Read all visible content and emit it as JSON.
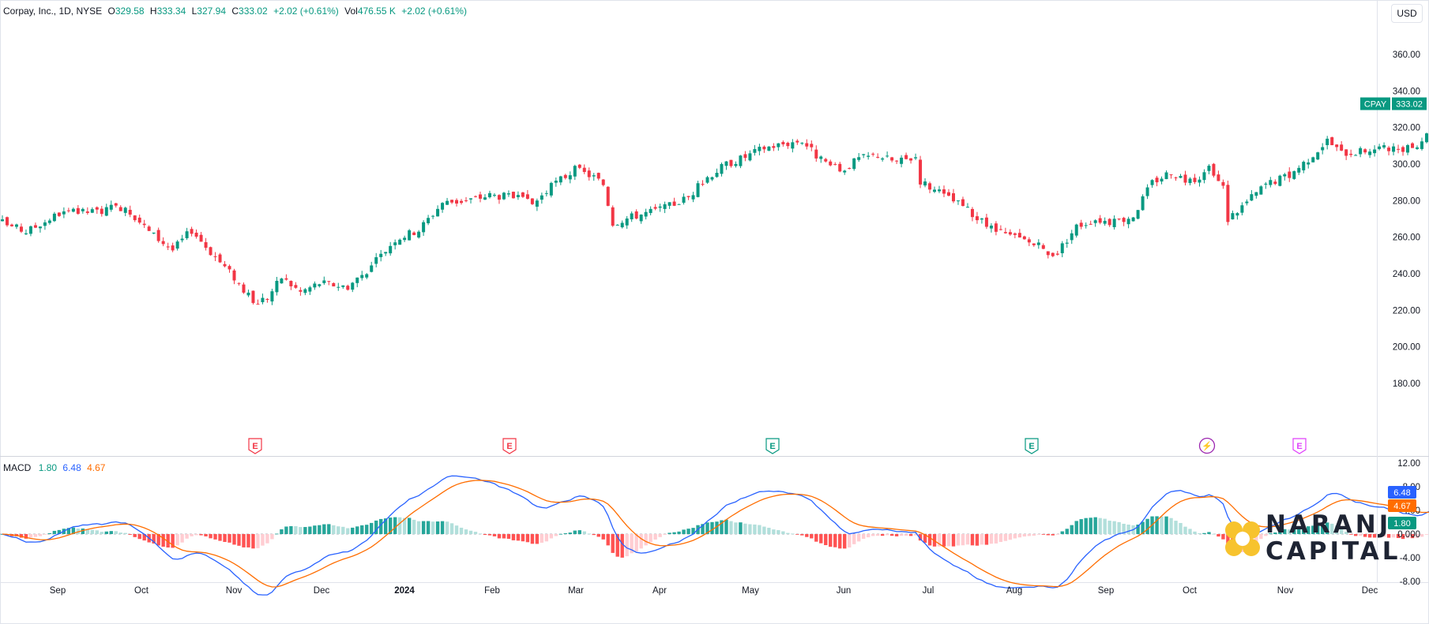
{
  "header": {
    "symbol_title": "Corpay, Inc., 1D, NYSE",
    "open_label": "O",
    "open_value": "329.58",
    "high_label": "H",
    "high_value": "333.34",
    "low_label": "L",
    "low_value": "327.94",
    "close_label": "C",
    "close_value": "333.02",
    "change": "+2.02 (+0.61%)",
    "vol_label": "Vol",
    "vol_value": "476.55 K",
    "vol_change": "+2.02 (+0.61%)"
  },
  "currency_button": "USD",
  "price_tag": {
    "ticker": "CPAY",
    "value": "333.02"
  },
  "macd_legend": {
    "label": "MACD",
    "hist": "1.80",
    "macd": "6.48",
    "signal": "4.67"
  },
  "macd_tags": {
    "macd": "6.48",
    "signal": "4.67",
    "hist": "1.80"
  },
  "brand": {
    "line1": "NARANJ",
    "line2": "CAPITAL"
  },
  "colors": {
    "up": "#089981",
    "down": "#f23645",
    "macd_line": "#2962ff",
    "signal_line": "#ff6d00",
    "hist_up": "#26a69a",
    "hist_up_light": "#b2dfdb",
    "hist_down": "#ff5252",
    "hist_down_light": "#ffcdd2",
    "brand_gold": "#f7c32e",
    "brand_text": "#1e2433"
  },
  "chart_data": [
    {
      "type": "candlestick",
      "title": "Corpay, Inc., 1D, NYSE",
      "ylim": [
        180,
        370
      ],
      "y_ticks": [
        "360.00",
        "340.00",
        "320.00",
        "300.00",
        "280.00",
        "260.00",
        "240.00",
        "220.00",
        "200.00",
        "180.00"
      ],
      "x_labels": [
        "Sep",
        "Oct",
        "Nov",
        "Dec",
        "2024",
        "Feb",
        "Mar",
        "Apr",
        "May",
        "Jun",
        "Jul",
        "Aug",
        "Sep",
        "Oct",
        "Nov",
        "Dec"
      ],
      "earnings_markers": [
        {
          "label": "E",
          "date": "Nov 2023",
          "status": "miss"
        },
        {
          "label": "E",
          "date": "Feb 2024",
          "status": "miss"
        },
        {
          "label": "E",
          "date": "May 2024",
          "status": "beat"
        },
        {
          "label": "E",
          "date": "Aug 2024",
          "status": "beat"
        },
        {
          "label": "⚡",
          "date": "Oct 2024",
          "status": "upcoming"
        },
        {
          "label": "E",
          "date": "Nov 2024",
          "status": "upcoming"
        }
      ],
      "close_path": [
        {
          "t": 0.0,
          "c": 268
        },
        {
          "t": 5.0,
          "c": 263
        },
        {
          "t": 12.0,
          "c": 273
        },
        {
          "t": 20.0,
          "c": 274
        },
        {
          "t": 26.0,
          "c": 277
        },
        {
          "t": 31.0,
          "c": 263
        },
        {
          "t": 36.0,
          "c": 253
        },
        {
          "t": 40.0,
          "c": 264
        },
        {
          "t": 44.0,
          "c": 252
        },
        {
          "t": 49.0,
          "c": 238
        },
        {
          "t": 53.0,
          "c": 224
        },
        {
          "t": 56.0,
          "c": 227
        },
        {
          "t": 59.0,
          "c": 238
        },
        {
          "t": 63.0,
          "c": 230
        },
        {
          "t": 67.0,
          "c": 235
        },
        {
          "t": 73.0,
          "c": 233
        },
        {
          "t": 78.0,
          "c": 244
        },
        {
          "t": 83.0,
          "c": 259
        },
        {
          "t": 88.0,
          "c": 264
        },
        {
          "t": 93.0,
          "c": 279
        },
        {
          "t": 98.0,
          "c": 280
        },
        {
          "t": 103.0,
          "c": 283
        },
        {
          "t": 108.0,
          "c": 282
        },
        {
          "t": 112.0,
          "c": 278
        },
        {
          "t": 117.0,
          "c": 290
        },
        {
          "t": 121.0,
          "c": 297
        },
        {
          "t": 125.0,
          "c": 293
        },
        {
          "t": 127.0,
          "c": 289
        },
        {
          "t": 129.0,
          "c": 268
        },
        {
          "t": 134.0,
          "c": 272
        },
        {
          "t": 140.0,
          "c": 276
        },
        {
          "t": 145.0,
          "c": 282
        },
        {
          "t": 149.0,
          "c": 293
        },
        {
          "t": 153.0,
          "c": 300
        },
        {
          "t": 157.0,
          "c": 304
        },
        {
          "t": 161.0,
          "c": 309
        },
        {
          "t": 165.0,
          "c": 311
        },
        {
          "t": 169.0,
          "c": 313
        },
        {
          "t": 173.0,
          "c": 302
        },
        {
          "t": 177.0,
          "c": 296
        },
        {
          "t": 181.0,
          "c": 303
        },
        {
          "t": 185.0,
          "c": 305
        },
        {
          "t": 189.0,
          "c": 301
        },
        {
          "t": 193.0,
          "c": 304
        },
        {
          "t": 194.0,
          "c": 291
        },
        {
          "t": 198.0,
          "c": 284
        },
        {
          "t": 203.0,
          "c": 277
        },
        {
          "t": 207.0,
          "c": 268
        },
        {
          "t": 211.0,
          "c": 262
        },
        {
          "t": 215.0,
          "c": 259
        },
        {
          "t": 219.0,
          "c": 255
        },
        {
          "t": 221.0,
          "c": 250
        },
        {
          "t": 223.0,
          "c": 252
        },
        {
          "t": 227.0,
          "c": 266
        },
        {
          "t": 231.0,
          "c": 270
        },
        {
          "t": 235.0,
          "c": 268
        },
        {
          "t": 239.0,
          "c": 272
        },
        {
          "t": 243.0,
          "c": 290
        },
        {
          "t": 247.0,
          "c": 296
        },
        {
          "t": 251.0,
          "c": 290
        },
        {
          "t": 255.0,
          "c": 297
        },
        {
          "t": 258.0,
          "c": 287
        },
        {
          "t": 259.0,
          "c": 270
        },
        {
          "t": 262.0,
          "c": 277
        },
        {
          "t": 267.0,
          "c": 289
        },
        {
          "t": 272.0,
          "c": 294
        },
        {
          "t": 276.0,
          "c": 303
        },
        {
          "t": 280.0,
          "c": 313
        },
        {
          "t": 283.0,
          "c": 306
        },
        {
          "t": 287.0,
          "c": 307
        },
        {
          "t": 291.0,
          "c": 309
        },
        {
          "t": 295.0,
          "c": 307
        },
        {
          "t": 298.0,
          "c": 309
        },
        {
          "t": 301.0,
          "c": 316
        },
        {
          "t": 304.0,
          "c": 329
        },
        {
          "t": 306.0,
          "c": 333.02
        }
      ]
    },
    {
      "type": "macd",
      "params": "12, 26, 9",
      "ylim": [
        -10,
        12.5
      ],
      "y_ticks": [
        "12.00",
        "8.00",
        "4.00",
        "0.000",
        "-4.00",
        "-8.00"
      ],
      "last": {
        "macd": 6.48,
        "signal": 4.67,
        "histogram": 1.8
      }
    }
  ]
}
